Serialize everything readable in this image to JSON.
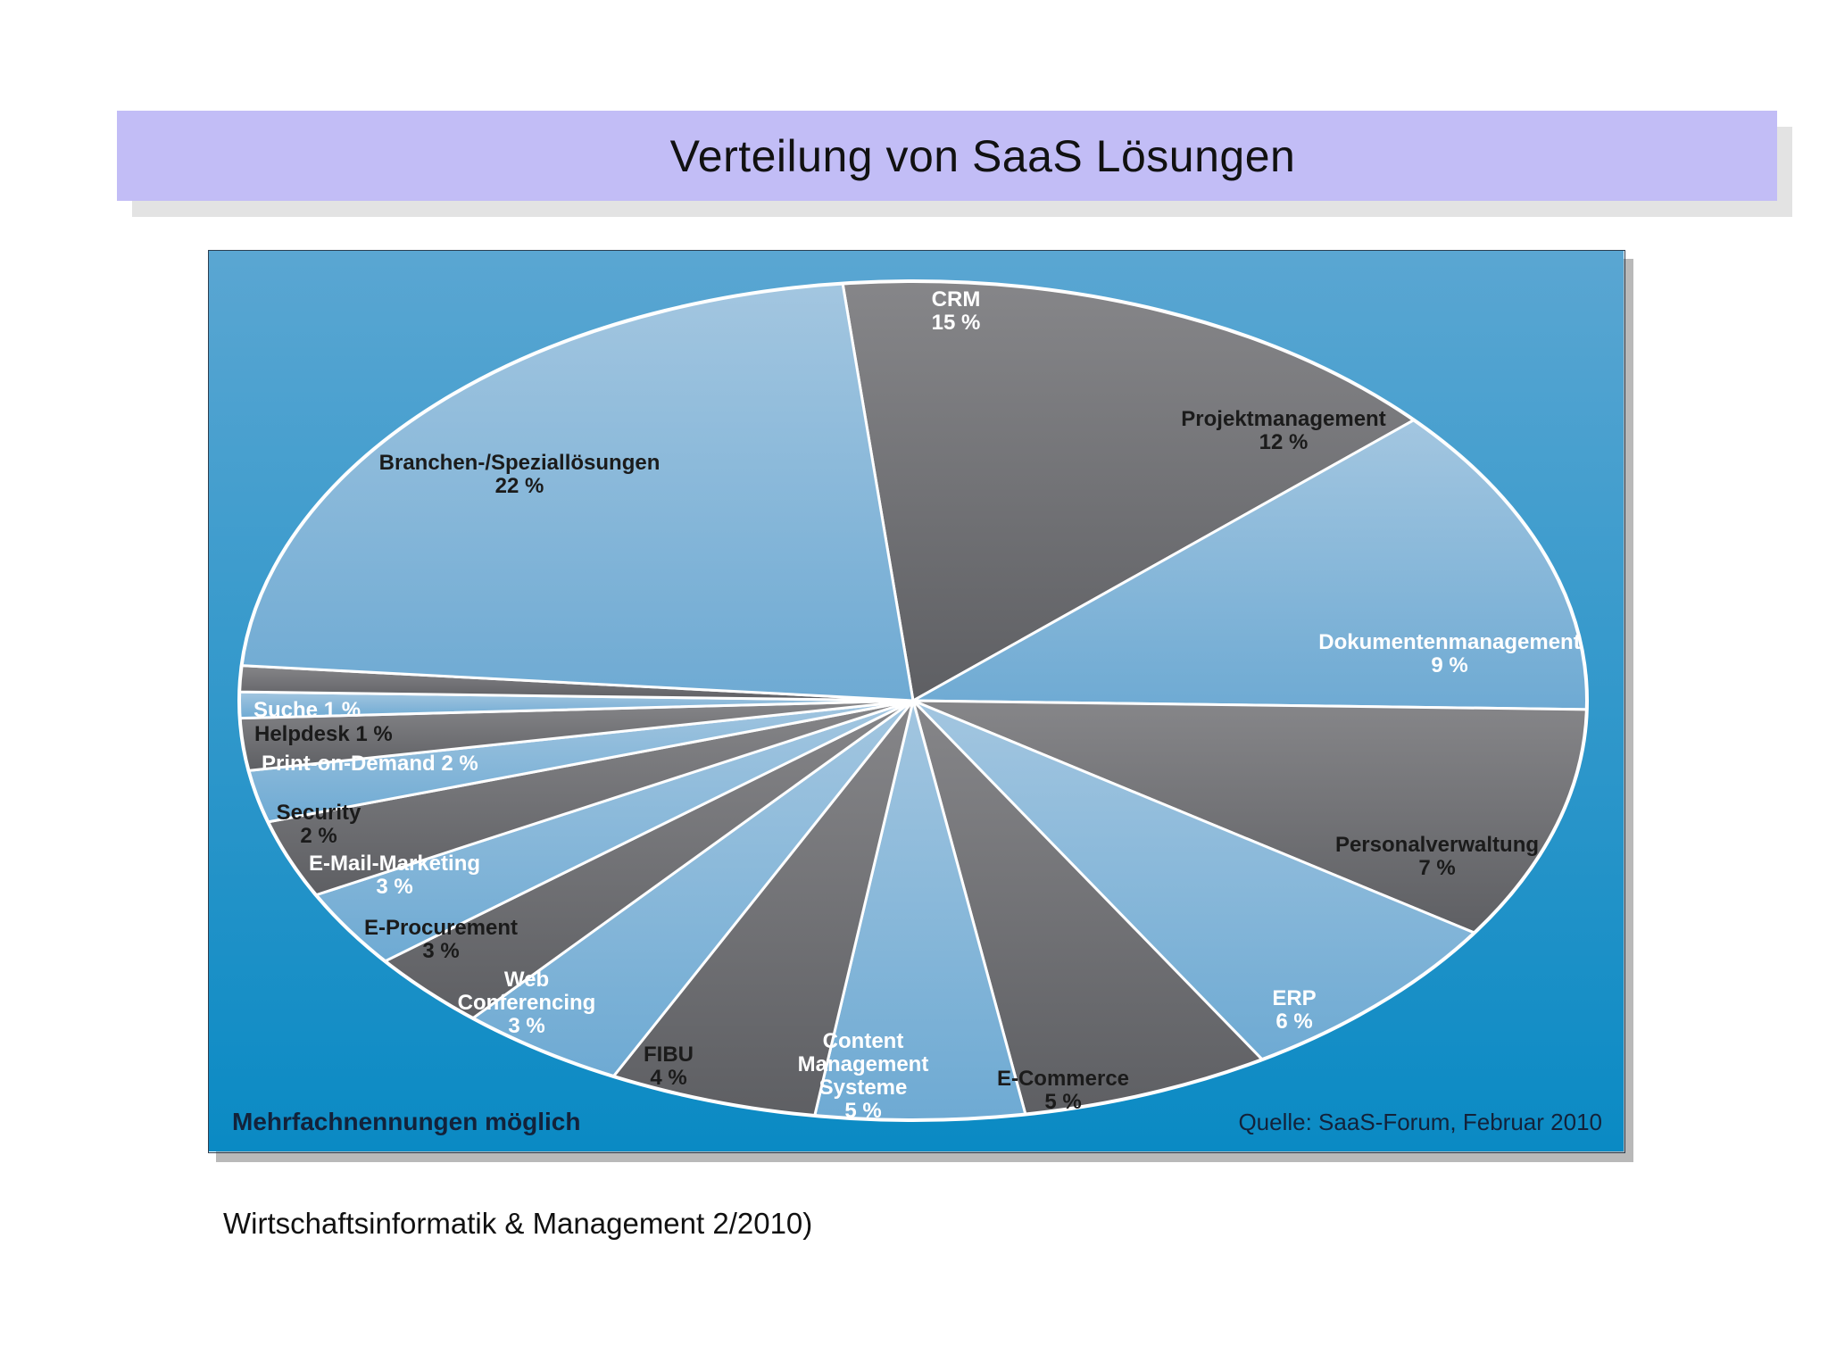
{
  "slide": {
    "title": "Verteilung von SaaS Lösungen",
    "caption": "Wirtschaftsinformatik & Management 2/2010)"
  },
  "chart_data": {
    "type": "pie",
    "footnote_left": "Mehrfachnennungen möglich",
    "footnote_right": "Quelle: SaaS-Forum, Februar 2010",
    "colors": {
      "light": "#8dbbdc",
      "dark": "#6e6f73",
      "background_top": "#5aa6d2",
      "background_bottom": "#0a8ac4",
      "text_on_light": "#1b1b1b",
      "text_on_dark": "#ffffff"
    },
    "slices": [
      {
        "label_lines": [
          "CRM",
          "15 %"
        ],
        "value": 15,
        "tone": "dark"
      },
      {
        "label_lines": [
          "Projektmanagement",
          "12 %"
        ],
        "value": 12,
        "tone": "light"
      },
      {
        "label_lines": [
          "Dokumentenmanagement",
          "9 %"
        ],
        "value": 9,
        "tone": "dark"
      },
      {
        "label_lines": [
          "Personalverwaltung",
          "7 %"
        ],
        "value": 7,
        "tone": "light"
      },
      {
        "label_lines": [
          "ERP",
          "6 %"
        ],
        "value": 6,
        "tone": "dark"
      },
      {
        "label_lines": [
          "E-Commerce",
          "5 %"
        ],
        "value": 5,
        "tone": "light"
      },
      {
        "label_lines": [
          "Content",
          "Management",
          "Systeme",
          "5 %"
        ],
        "value": 5,
        "tone": "dark"
      },
      {
        "label_lines": [
          "FIBU",
          "4 %"
        ],
        "value": 4,
        "tone": "light"
      },
      {
        "label_lines": [
          "Web",
          "Conferencing",
          "3 %"
        ],
        "value": 3,
        "tone": "dark"
      },
      {
        "label_lines": [
          "E-Procurement",
          "3 %"
        ],
        "value": 3,
        "tone": "light"
      },
      {
        "label_lines": [
          "E-Mail-Marketing",
          "3 %"
        ],
        "value": 3,
        "tone": "dark"
      },
      {
        "label_lines": [
          "Security",
          "2 %"
        ],
        "value": 2,
        "tone": "light"
      },
      {
        "label_lines": [
          "Print-on-Demand 2 %"
        ],
        "value": 2,
        "tone": "dark"
      },
      {
        "label_lines": [
          "Helpdesk 1 %"
        ],
        "value": 1,
        "tone": "light"
      },
      {
        "label_lines": [
          "Suche 1 %"
        ],
        "value": 1,
        "tone": "dark"
      },
      {
        "label_lines": [
          "Branchen-/Speziallösungen",
          "22 %"
        ],
        "value": 22,
        "tone": "light"
      }
    ]
  }
}
